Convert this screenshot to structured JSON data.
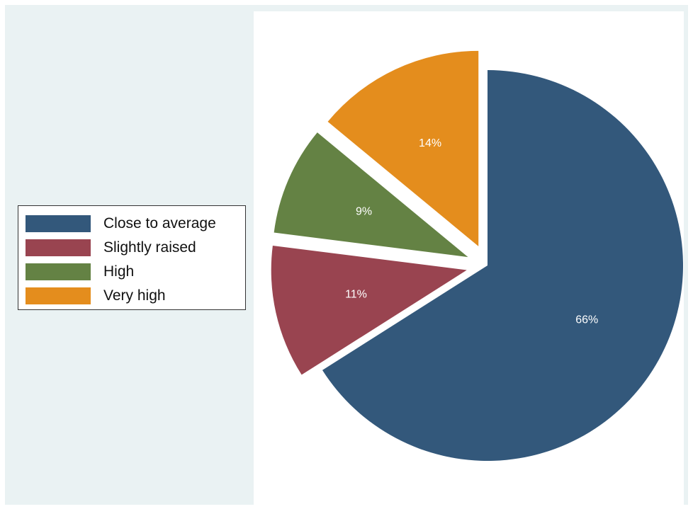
{
  "chart_data": {
    "type": "pie",
    "categories": [
      "Close to average",
      "Slightly raised",
      "High",
      "Very high"
    ],
    "values": [
      66,
      11,
      9,
      14
    ],
    "value_labels": [
      "66%",
      "11%",
      "9%",
      "14%"
    ],
    "colors": [
      "#33587b",
      "#994450",
      "#648244",
      "#e48d1d"
    ],
    "exploded": true,
    "legend_position": "left",
    "title": "",
    "background_color": "#eaf2f3"
  },
  "legend": {
    "items": [
      {
        "label": "Close to average",
        "color": "#33587b"
      },
      {
        "label": "Slightly raised",
        "color": "#994450"
      },
      {
        "label": "High",
        "color": "#648244"
      },
      {
        "label": "Very high",
        "color": "#e48d1d"
      }
    ]
  }
}
